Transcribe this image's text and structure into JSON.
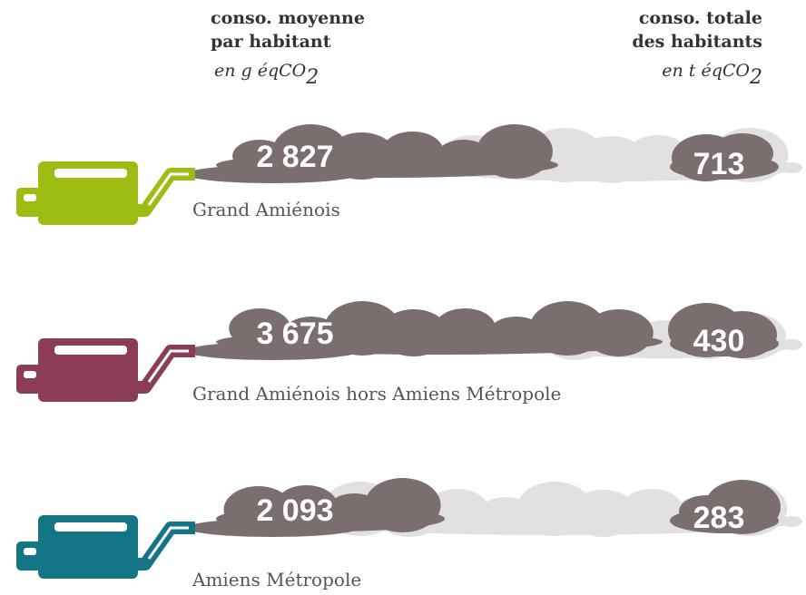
{
  "header": {
    "left": {
      "line1": "conso. moyenne",
      "line2": "par habitant",
      "unit": "en g éqCO",
      "unit_sub": "2"
    },
    "right": {
      "line1": "conso. totale",
      "line2": "des habitants",
      "unit": "en t éqCO",
      "unit_sub": "2"
    }
  },
  "rows": [
    {
      "label": "Grand Amiénois",
      "average": "2 827",
      "total": "713",
      "color": "#9dbd13"
    },
    {
      "label": "Grand Amiénois hors Amiens Métropole",
      "average": "3 675",
      "total": "430",
      "color": "#8a3d55"
    },
    {
      "label": "Amiens Métropole",
      "average": "2 093",
      "total": "283",
      "color": "#137585"
    }
  ]
}
